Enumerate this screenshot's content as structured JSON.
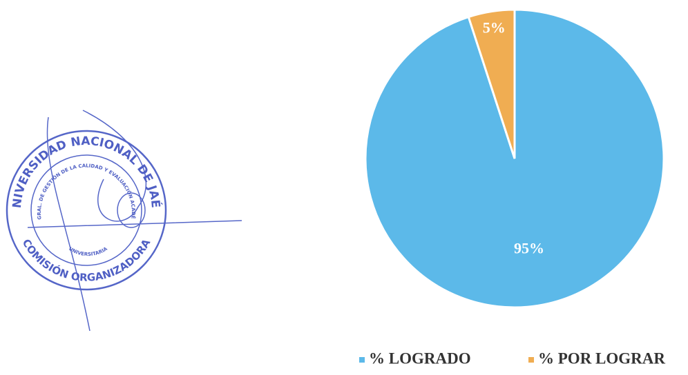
{
  "chart_data": {
    "type": "pie",
    "categories": [
      "% LOGRADO",
      "% POR LOGRAR"
    ],
    "values": [
      95,
      5
    ],
    "value_labels": [
      "95%",
      "5%"
    ],
    "colors": [
      "#5cb9e9",
      "#f0ad52"
    ],
    "legend": "bottom"
  },
  "stamp": {
    "outer_top": "UNIVERSIDAD NACIONAL DE JAÉN",
    "outer_bottom": "COMISIÓN ORGANIZADORA",
    "inner_top": "DIR. GRAL. DE GESTIÓN DE LA CALIDAD Y EVALUACIÓN ACADÉMICA",
    "inner_bottom": "UNIVERSITARIA"
  }
}
